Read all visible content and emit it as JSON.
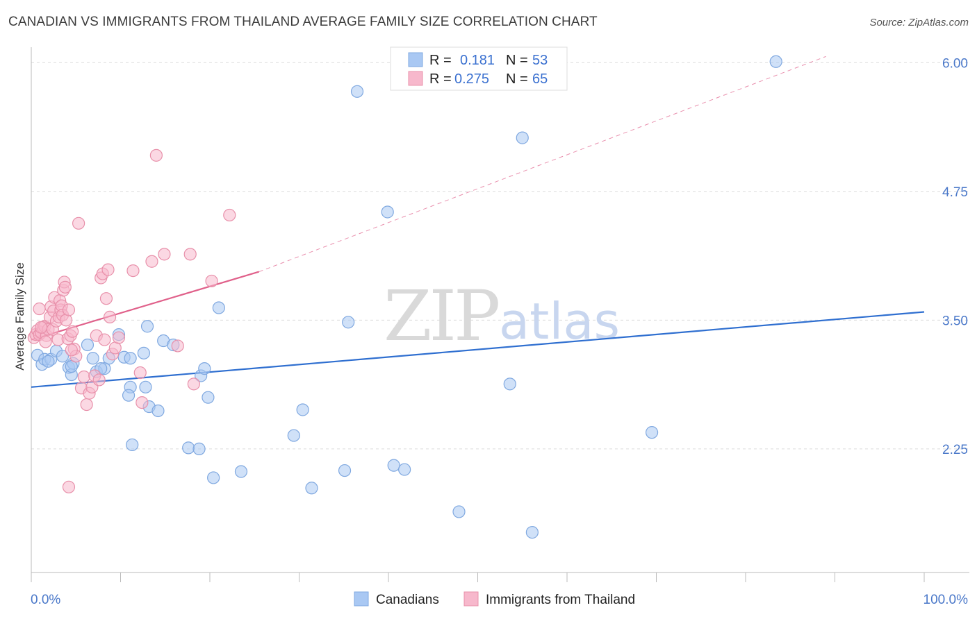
{
  "chart_data": {
    "type": "scatter",
    "title": "CANADIAN VS IMMIGRANTS FROM THAILAND AVERAGE FAMILY SIZE CORRELATION CHART",
    "source": "Source: ZipAtlas.com",
    "ylabel": "Average Family Size",
    "xlabel": "",
    "xlim": [
      0,
      100
    ],
    "ylim": [
      1.05,
      6.15
    ],
    "x_tick_labels": [
      "0.0%",
      "100.0%"
    ],
    "y_ticks": [
      2.25,
      3.5,
      4.75,
      6.0
    ],
    "y_tick_labels": [
      "2.25",
      "3.50",
      "4.75",
      "6.00"
    ],
    "watermark": {
      "zip": "ZIP",
      "atlas": "atlas"
    },
    "legend": [
      {
        "r_label": "R =",
        "r_value": "0.181",
        "n_label": "N =",
        "n_value": "53"
      },
      {
        "r_label": "R =",
        "r_value": "0.275",
        "n_label": "N =",
        "n_value": "65"
      }
    ],
    "series": [
      {
        "name": "Canadians",
        "color": "#a9c8f3",
        "stroke": "#7fa8e0",
        "line_color": "#2f6fd0",
        "trend": {
          "x": [
            0,
            100
          ],
          "y": [
            2.85,
            3.58
          ],
          "dashed_from": null
        },
        "points": [
          [
            0.7,
            3.16
          ],
          [
            1.2,
            3.07
          ],
          [
            1.5,
            3.12
          ],
          [
            2.2,
            3.12
          ],
          [
            2.8,
            3.2
          ],
          [
            3.5,
            3.15
          ],
          [
            4.2,
            3.04
          ],
          [
            4.5,
            2.97
          ],
          [
            4.7,
            3.08
          ],
          [
            6.3,
            3.26
          ],
          [
            7.3,
            3.0
          ],
          [
            8.2,
            3.03
          ],
          [
            9.8,
            3.36
          ],
          [
            7.8,
            3.03
          ],
          [
            8.7,
            3.13
          ],
          [
            10.4,
            3.14
          ],
          [
            11.1,
            2.85
          ],
          [
            10.9,
            2.77
          ],
          [
            11.3,
            2.29
          ],
          [
            12.6,
            3.18
          ],
          [
            13.0,
            3.44
          ],
          [
            14.8,
            3.3
          ],
          [
            15.9,
            3.26
          ],
          [
            12.8,
            2.85
          ],
          [
            13.2,
            2.66
          ],
          [
            14.2,
            2.62
          ],
          [
            17.6,
            2.26
          ],
          [
            18.8,
            2.25
          ],
          [
            19.0,
            2.96
          ],
          [
            19.4,
            3.03
          ],
          [
            19.8,
            2.75
          ],
          [
            20.4,
            1.97
          ],
          [
            21.0,
            3.62
          ],
          [
            23.5,
            2.03
          ],
          [
            29.4,
            2.38
          ],
          [
            30.4,
            2.63
          ],
          [
            31.4,
            1.87
          ],
          [
            35.1,
            2.04
          ],
          [
            35.5,
            3.48
          ],
          [
            36.5,
            5.72
          ],
          [
            39.9,
            4.55
          ],
          [
            40.6,
            2.09
          ],
          [
            41.8,
            2.05
          ],
          [
            47.9,
            1.64
          ],
          [
            53.6,
            2.88
          ],
          [
            55.0,
            5.27
          ],
          [
            56.1,
            1.44
          ],
          [
            69.5,
            2.41
          ],
          [
            83.4,
            6.01
          ],
          [
            4.5,
            3.05
          ],
          [
            11.1,
            3.13
          ],
          [
            6.9,
            3.13
          ],
          [
            1.9,
            3.1
          ]
        ]
      },
      {
        "name": "Immigrants from Thailand",
        "color": "#f7b8cc",
        "stroke": "#e890aa",
        "line_color": "#e0608a",
        "trend": {
          "x": [
            0,
            25.5,
            89
          ],
          "y": [
            3.31,
            3.97,
            6.06
          ],
          "dashed_from": 25.5
        },
        "points": [
          [
            0.3,
            3.33
          ],
          [
            0.5,
            3.36
          ],
          [
            0.7,
            3.4
          ],
          [
            0.9,
            3.36
          ],
          [
            1.1,
            3.38
          ],
          [
            1.3,
            3.43
          ],
          [
            1.5,
            3.44
          ],
          [
            1.7,
            3.35
          ],
          [
            1.9,
            3.41
          ],
          [
            2.1,
            3.53
          ],
          [
            2.2,
            3.63
          ],
          [
            2.4,
            3.41
          ],
          [
            2.5,
            3.59
          ],
          [
            2.6,
            3.72
          ],
          [
            2.8,
            3.49
          ],
          [
            3.0,
            3.31
          ],
          [
            3.1,
            3.53
          ],
          [
            3.2,
            3.69
          ],
          [
            3.3,
            3.6
          ],
          [
            3.4,
            3.64
          ],
          [
            3.5,
            3.55
          ],
          [
            3.6,
            3.79
          ],
          [
            3.7,
            3.87
          ],
          [
            3.8,
            3.82
          ],
          [
            3.9,
            3.5
          ],
          [
            4.1,
            3.32
          ],
          [
            4.2,
            3.6
          ],
          [
            4.4,
            3.35
          ],
          [
            4.6,
            3.39
          ],
          [
            4.8,
            3.22
          ],
          [
            5.0,
            3.15
          ],
          [
            5.3,
            4.44
          ],
          [
            5.6,
            2.84
          ],
          [
            5.9,
            2.95
          ],
          [
            6.2,
            2.68
          ],
          [
            6.5,
            2.79
          ],
          [
            6.8,
            2.85
          ],
          [
            7.1,
            2.96
          ],
          [
            7.3,
            3.35
          ],
          [
            7.6,
            2.92
          ],
          [
            7.8,
            3.91
          ],
          [
            8.0,
            3.95
          ],
          [
            8.2,
            3.31
          ],
          [
            8.4,
            3.71
          ],
          [
            8.6,
            3.99
          ],
          [
            8.8,
            3.53
          ],
          [
            9.1,
            3.17
          ],
          [
            9.4,
            3.23
          ],
          [
            9.8,
            3.33
          ],
          [
            11.4,
            3.98
          ],
          [
            12.2,
            2.99
          ],
          [
            12.4,
            2.7
          ],
          [
            13.5,
            4.07
          ],
          [
            14.0,
            5.1
          ],
          [
            14.9,
            4.14
          ],
          [
            16.4,
            3.25
          ],
          [
            17.8,
            4.14
          ],
          [
            18.2,
            2.88
          ],
          [
            20.2,
            3.88
          ],
          [
            22.2,
            4.52
          ],
          [
            4.5,
            3.21
          ],
          [
            1.6,
            3.29
          ],
          [
            0.9,
            3.61
          ],
          [
            1.1,
            3.43
          ],
          [
            4.2,
            1.88
          ]
        ]
      }
    ]
  }
}
